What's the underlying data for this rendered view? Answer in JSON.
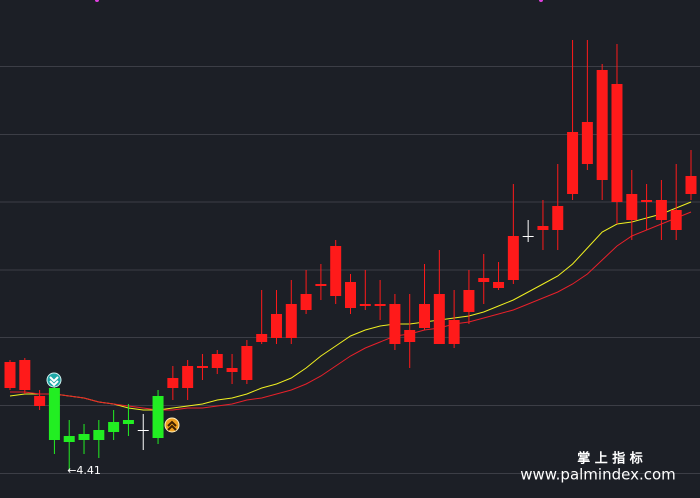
{
  "chart_data": {
    "type": "candlestick",
    "ylim": [
      4.27,
      6.76
    ],
    "colors": {
      "up": "#ff1a1a",
      "down": "#22ee22",
      "flat": "#ffffff"
    },
    "open": [
      4.82,
      4.81,
      4.73,
      4.82,
      4.58,
      4.59,
      4.61,
      4.65,
      4.66,
      4.61,
      4.78,
      4.82,
      4.82,
      4.92,
      4.92,
      4.9,
      4.86,
      5.05,
      5.07,
      5.07,
      5.21,
      5.33,
      5.28,
      5.22,
      5.23,
      5.23,
      5.04,
      5.05,
      5.12,
      5.04,
      5.04,
      5.2,
      5.35,
      5.32,
      5.36,
      5.58,
      5.61,
      5.61,
      5.79,
      5.94,
      5.86,
      5.75,
      5.66,
      5.75,
      5.66,
      5.61,
      5.79
    ],
    "high": [
      4.96,
      4.97,
      4.81,
      4.84,
      4.66,
      4.64,
      4.66,
      4.71,
      4.74,
      4.69,
      4.81,
      4.93,
      4.96,
      4.99,
      5.01,
      4.99,
      5.06,
      5.31,
      5.31,
      5.36,
      5.41,
      5.44,
      5.56,
      5.39,
      5.41,
      5.36,
      5.29,
      5.29,
      5.44,
      5.51,
      5.31,
      5.41,
      5.49,
      5.45,
      5.84,
      5.66,
      5.76,
      5.94,
      6.56,
      6.56,
      6.44,
      6.54,
      5.91,
      5.84,
      5.86,
      5.94,
      6.01
    ],
    "low": [
      4.81,
      4.79,
      4.71,
      4.49,
      4.41,
      4.49,
      4.47,
      4.56,
      4.58,
      4.51,
      4.54,
      4.76,
      4.76,
      4.86,
      4.89,
      4.84,
      4.84,
      5.04,
      5.04,
      5.04,
      5.19,
      5.26,
      5.24,
      5.19,
      5.21,
      5.16,
      5.01,
      4.92,
      5.11,
      5.04,
      5.02,
      5.14,
      5.24,
      5.31,
      5.34,
      5.55,
      5.51,
      5.51,
      5.76,
      5.91,
      5.76,
      5.64,
      5.56,
      5.61,
      5.56,
      5.56,
      5.76
    ],
    "close": [
      4.95,
      4.96,
      4.78,
      4.56,
      4.55,
      4.56,
      4.56,
      4.6,
      4.64,
      4.61,
      4.57,
      4.87,
      4.93,
      4.93,
      4.99,
      4.92,
      5.03,
      5.09,
      5.19,
      5.24,
      5.29,
      5.34,
      5.53,
      5.35,
      5.24,
      5.24,
      5.24,
      5.11,
      5.24,
      5.29,
      5.16,
      5.31,
      5.37,
      5.35,
      5.58,
      5.58,
      5.63,
      5.73,
      6.1,
      6.15,
      6.41,
      6.34,
      5.79,
      5.76,
      5.76,
      5.71,
      5.88
    ],
    "lines": [
      {
        "color": "#f0f020",
        "values": [
          4.78,
          4.79,
          4.79,
          4.79,
          4.78,
          4.77,
          4.75,
          4.74,
          4.72,
          4.71,
          4.71,
          4.72,
          4.73,
          4.74,
          4.76,
          4.77,
          4.79,
          4.82,
          4.84,
          4.87,
          4.92,
          4.98,
          5.03,
          5.08,
          5.11,
          5.13,
          5.14,
          5.14,
          5.15,
          5.16,
          5.17,
          5.18,
          5.2,
          5.23,
          5.26,
          5.3,
          5.34,
          5.38,
          5.44,
          5.52,
          5.6,
          5.64,
          5.65,
          5.67,
          5.69,
          5.72,
          5.75
        ]
      },
      {
        "color": "#e8202a",
        "values": [
          4.8,
          4.8,
          4.79,
          4.79,
          4.78,
          4.77,
          4.75,
          4.74,
          4.73,
          4.72,
          4.71,
          4.71,
          4.72,
          4.72,
          4.73,
          4.74,
          4.76,
          4.77,
          4.79,
          4.81,
          4.84,
          4.88,
          4.93,
          4.98,
          5.02,
          5.05,
          5.08,
          5.09,
          5.11,
          5.12,
          5.14,
          5.15,
          5.17,
          5.19,
          5.21,
          5.24,
          5.27,
          5.3,
          5.34,
          5.39,
          5.46,
          5.53,
          5.58,
          5.61,
          5.64,
          5.67,
          5.7
        ]
      }
    ],
    "annotation": "←4.41"
  },
  "watermark": {
    "title": "掌 上 指 标",
    "url": "www.palmindex.com"
  }
}
